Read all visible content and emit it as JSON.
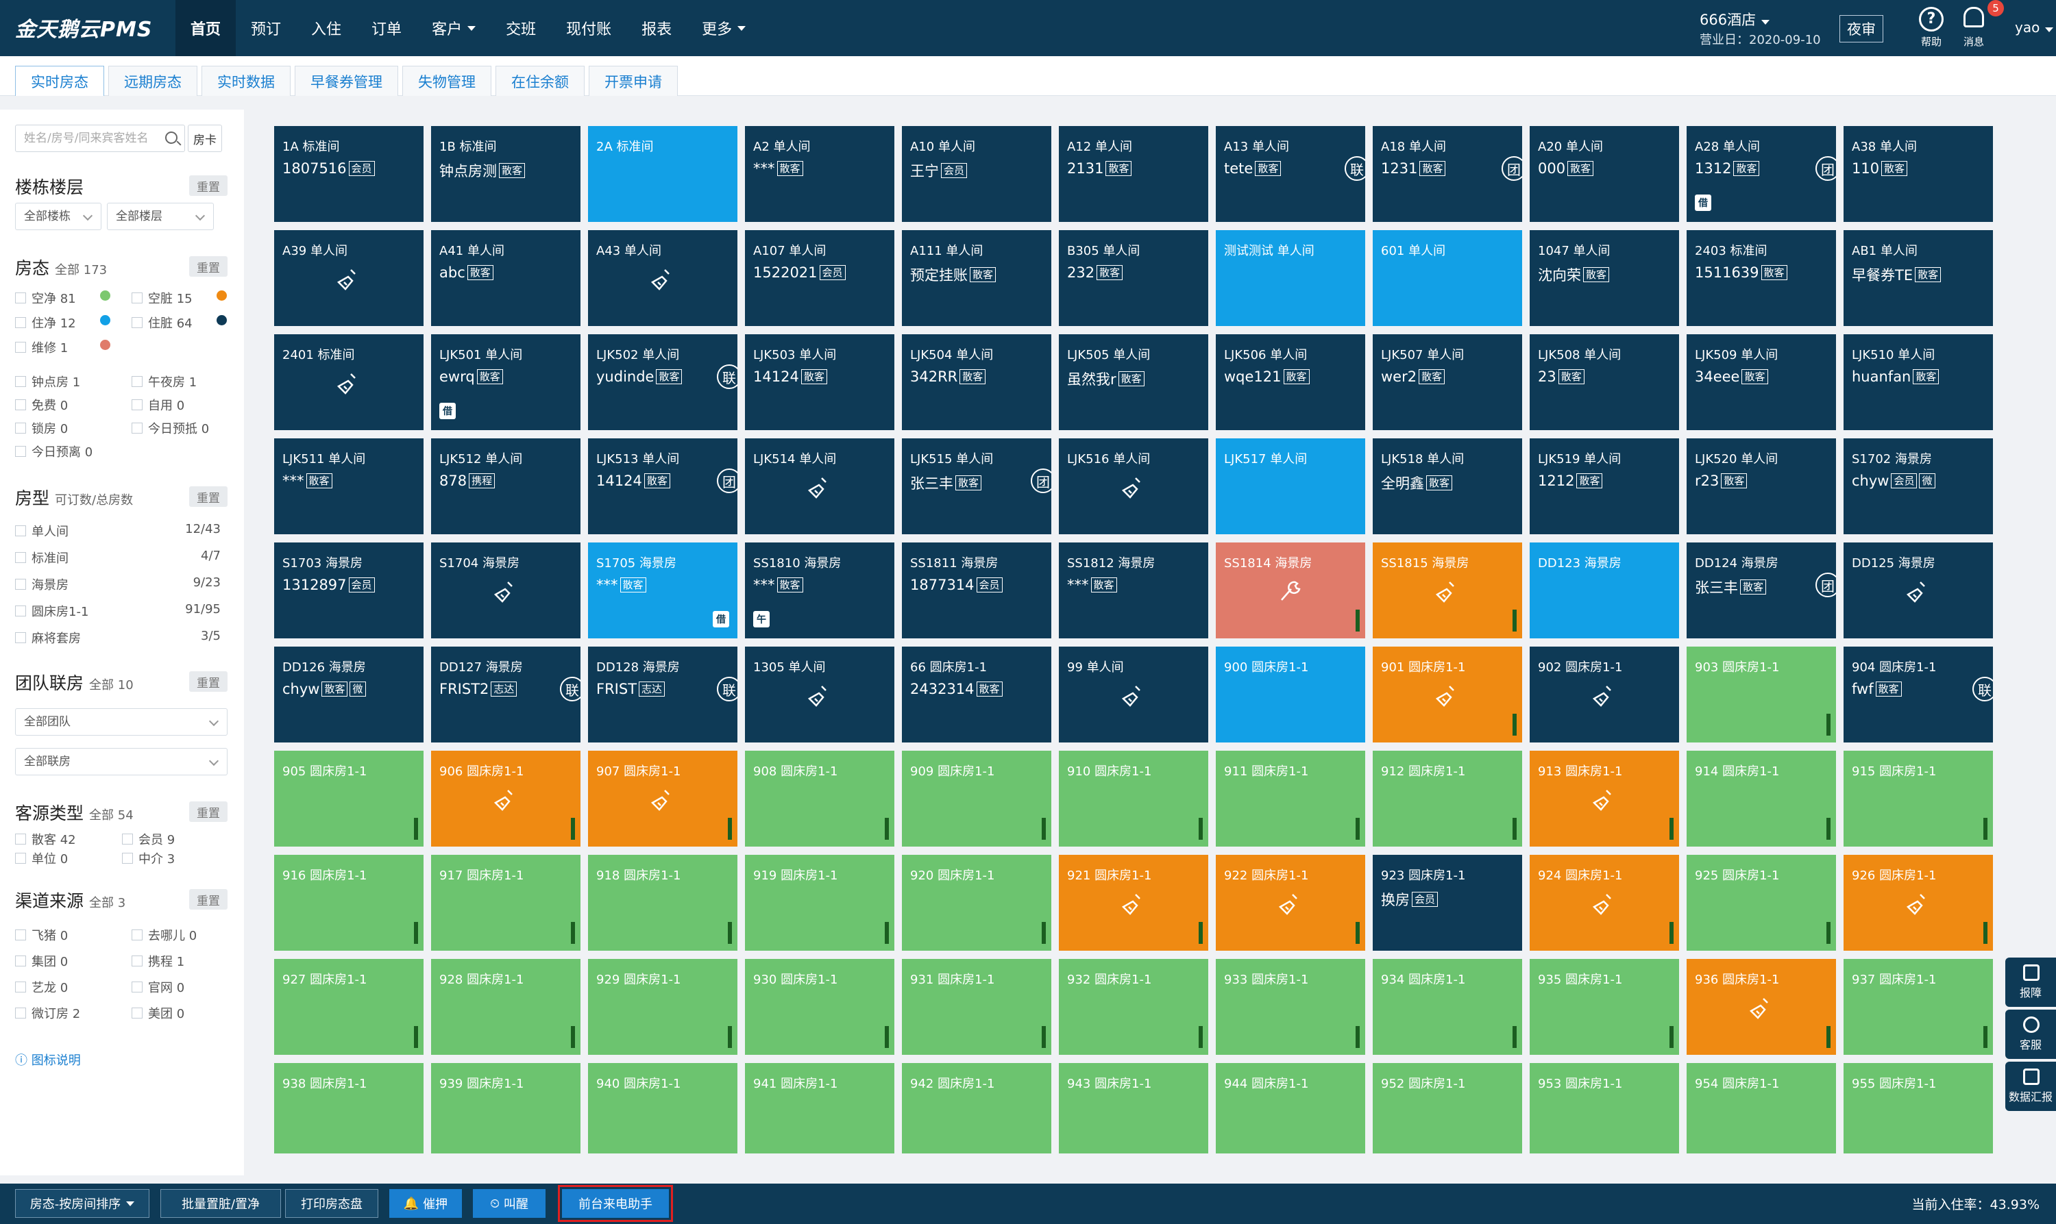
{
  "app": {
    "title": "金天鹅云PMS"
  },
  "nav": [
    {
      "label": "首页",
      "active": true
    },
    {
      "label": "预订"
    },
    {
      "label": "入住"
    },
    {
      "label": "订单"
    },
    {
      "label": "客户",
      "dropdown": true
    },
    {
      "label": "交班"
    },
    {
      "label": "现付账"
    },
    {
      "label": "报表"
    },
    {
      "label": "更多",
      "dropdown": true
    }
  ],
  "header": {
    "hotel": "666酒店",
    "business_date": "营业日：2020-09-10",
    "night_audit": "夜审",
    "help": "帮助",
    "messages": "消息",
    "message_count": "5",
    "user": "yao"
  },
  "tabs": [
    {
      "label": "实时房态",
      "active": true
    },
    {
      "label": "远期房态"
    },
    {
      "label": "实时数据"
    },
    {
      "label": "早餐券管理"
    },
    {
      "label": "失物管理"
    },
    {
      "label": "在住余额"
    },
    {
      "label": "开票申请"
    }
  ],
  "sidebar": {
    "search_placeholder": "姓名/房号/同来宾客姓名",
    "room_card": "房卡",
    "reset": "重置",
    "building": {
      "title": "楼栋楼层",
      "building_select": "全部楼栋",
      "floor_select": "全部楼层"
    },
    "status": {
      "title": "房态",
      "total": "全部 173",
      "items": [
        {
          "label": "空净 81",
          "color": "#7cc86f"
        },
        {
          "label": "空脏 15",
          "color": "#ef8a12"
        },
        {
          "label": "住净 12",
          "color": "#12a0e6"
        },
        {
          "label": "住脏 64",
          "color": "#0e3a56"
        },
        {
          "label": "维修 1",
          "color": "#e07b6a"
        }
      ],
      "extra": [
        "钟点房 1",
        "午夜房 1",
        "免费 0",
        "自用 0",
        "锁房 0",
        "今日预抵 0",
        "今日预离 0"
      ]
    },
    "room_type": {
      "title": "房型",
      "sub": "可订数/总房数",
      "items": [
        {
          "label": "单人间",
          "count": "12/43"
        },
        {
          "label": "标准间",
          "count": "4/7"
        },
        {
          "label": "海景房",
          "count": "9/23"
        },
        {
          "label": "圆床房1-1",
          "count": "91/95"
        },
        {
          "label": "麻将套房",
          "count": "3/5"
        }
      ]
    },
    "group": {
      "title": "团队联房",
      "total": "全部 10",
      "team_select": "全部团队",
      "linked_select": "全部联房"
    },
    "source": {
      "title": "客源类型",
      "total": "全部 54",
      "items": [
        "散客 42",
        "会员 9",
        "单位 0",
        "中介 3"
      ]
    },
    "channel": {
      "title": "渠道来源",
      "total": "全部 3",
      "items": [
        "飞猪 0",
        "去哪儿 0",
        "集团 0",
        "携程 1",
        "艺龙 0",
        "官网 0",
        "微订房 2",
        "美团 0"
      ]
    },
    "legend_link": "图标说明"
  },
  "colors": {
    "occupied_dirty": "#0e3a56",
    "occupied_clean": "#12a0e6",
    "vacant_clean": "#6cc46f",
    "vacant_dirty": "#ef8a12",
    "repair": "#e07b6a"
  },
  "rooms": [
    {
      "name": "1A 标准间",
      "guest": "1807516",
      "tag": "会员",
      "status": "occupied_dirty"
    },
    {
      "name": "1B 标准间",
      "guest": "钟点房测",
      "tag": "散客",
      "status": "occupied_dirty"
    },
    {
      "name": "2A 标准间",
      "guest": "",
      "tag": "",
      "status": "occupied_clean"
    },
    {
      "name": "A2 单人间",
      "guest": "***",
      "tag": "散客",
      "status": "occupied_dirty"
    },
    {
      "name": "A10 单人间",
      "guest": "王宁",
      "tag": "会员",
      "status": "occupied_dirty"
    },
    {
      "name": "A12 单人间",
      "guest": "2131",
      "tag": "散客",
      "status": "occupied_dirty"
    },
    {
      "name": "A13 单人间",
      "guest": "tete",
      "tag": "散客",
      "status": "occupied_dirty",
      "badge": "联"
    },
    {
      "name": "A18 单人间",
      "guest": "1231",
      "tag": "散客",
      "status": "occupied_dirty",
      "badge": "团"
    },
    {
      "name": "A20 单人间",
      "guest": "000",
      "tag": "散客",
      "status": "occupied_dirty"
    },
    {
      "name": "A28 单人间",
      "guest": "1312",
      "tag": "散客",
      "status": "occupied_dirty",
      "badge": "团",
      "mini": "借"
    },
    {
      "name": "A38 单人间",
      "guest": "110",
      "tag": "散客",
      "status": "occupied_dirty"
    },
    {
      "name": "A39 单人间",
      "guest": "",
      "tag": "",
      "status": "occupied_dirty",
      "broom": true
    },
    {
      "name": "A41 单人间",
      "guest": "abc",
      "tag": "散客",
      "status": "occupied_dirty"
    },
    {
      "name": "A43 单人间",
      "guest": "",
      "tag": "",
      "status": "occupied_dirty",
      "broom": true
    },
    {
      "name": "A107 单人间",
      "guest": "1522021",
      "tag": "会员",
      "status": "occupied_dirty"
    },
    {
      "name": "A111 单人间",
      "guest": "预定挂账",
      "tag": "散客",
      "status": "occupied_dirty"
    },
    {
      "name": "B305 单人间",
      "guest": "232",
      "tag": "散客",
      "status": "occupied_dirty"
    },
    {
      "name": "测试测试 单人间",
      "guest": "",
      "tag": "",
      "status": "occupied_clean"
    },
    {
      "name": "601 单人间",
      "guest": "",
      "tag": "",
      "status": "occupied_clean"
    },
    {
      "name": "1047 单人间",
      "guest": "沈向荣",
      "tag": "散客",
      "status": "occupied_dirty"
    },
    {
      "name": "2403 标准间",
      "guest": "1511639",
      "tag": "散客",
      "status": "occupied_dirty"
    },
    {
      "name": "AB1 单人间",
      "guest": "早餐券TE",
      "tag": "散客",
      "status": "occupied_dirty"
    },
    {
      "name": "2401 标准间",
      "guest": "",
      "tag": "",
      "status": "occupied_dirty",
      "broom": true
    },
    {
      "name": "LJK501 单人间",
      "guest": "ewrq",
      "tag": "散客",
      "status": "occupied_dirty",
      "mini": "借"
    },
    {
      "name": "LJK502 单人间",
      "guest": "yudinde",
      "tag": "散客",
      "status": "occupied_dirty",
      "badge": "联"
    },
    {
      "name": "LJK503 单人间",
      "guest": "14124",
      "tag": "散客",
      "status": "occupied_dirty"
    },
    {
      "name": "LJK504 单人间",
      "guest": "342RR",
      "tag": "散客",
      "status": "occupied_dirty"
    },
    {
      "name": "LJK505 单人间",
      "guest": "虽然我r",
      "tag": "散客",
      "status": "occupied_dirty"
    },
    {
      "name": "LJK506 单人间",
      "guest": "wqe121",
      "tag": "散客",
      "status": "occupied_dirty"
    },
    {
      "name": "LJK507 单人间",
      "guest": "wer2",
      "tag": "散客",
      "status": "occupied_dirty"
    },
    {
      "name": "LJK508 单人间",
      "guest": "23",
      "tag": "散客",
      "status": "occupied_dirty"
    },
    {
      "name": "LJK509 单人间",
      "guest": "34eee",
      "tag": "散客",
      "status": "occupied_dirty"
    },
    {
      "name": "LJK510 单人间",
      "guest": "huanfan",
      "tag": "散客",
      "status": "occupied_dirty"
    },
    {
      "name": "LJK511 单人间",
      "guest": "***",
      "tag": "散客",
      "status": "occupied_dirty"
    },
    {
      "name": "LJK512 单人间",
      "guest": "878",
      "tag": "携程",
      "status": "occupied_dirty"
    },
    {
      "name": "LJK513 单人间",
      "guest": "14124",
      "tag": "散客",
      "status": "occupied_dirty",
      "badge": "团"
    },
    {
      "name": "LJK514 单人间",
      "guest": "",
      "tag": "",
      "status": "occupied_dirty",
      "broom": true
    },
    {
      "name": "LJK515 单人间",
      "guest": "张三丰",
      "tag": "散客",
      "status": "occupied_dirty",
      "badge": "团"
    },
    {
      "name": "LJK516 单人间",
      "guest": "",
      "tag": "",
      "status": "occupied_dirty",
      "broom": true
    },
    {
      "name": "LJK517 单人间",
      "guest": "",
      "tag": "",
      "status": "occupied_clean"
    },
    {
      "name": "LJK518 单人间",
      "guest": "全明鑫",
      "tag": "散客",
      "status": "occupied_dirty"
    },
    {
      "name": "LJK519 单人间",
      "guest": "1212",
      "tag": "散客",
      "status": "occupied_dirty"
    },
    {
      "name": "LJK520 单人间",
      "guest": "r23",
      "tag": "散客",
      "status": "occupied_dirty"
    },
    {
      "name": "S1702 海景房",
      "guest": "chyw",
      "tag": "会员",
      "tag2": "微",
      "status": "occupied_dirty"
    },
    {
      "name": "S1703 海景房",
      "guest": "1312897",
      "tag": "会员",
      "status": "occupied_dirty"
    },
    {
      "name": "S1704 海景房",
      "guest": "",
      "tag": "",
      "status": "occupied_dirty",
      "broom": true
    },
    {
      "name": "S1705 海景房",
      "guest": "***",
      "tag": "散客",
      "status": "occupied_clean",
      "mini_right": "借"
    },
    {
      "name": "SS1810 海景房",
      "guest": "***",
      "tag": "散客",
      "status": "occupied_dirty",
      "mini": "午"
    },
    {
      "name": "SS1811 海景房",
      "guest": "1877314",
      "tag": "会员",
      "status": "occupied_dirty"
    },
    {
      "name": "SS1812 海景房",
      "guest": "***",
      "tag": "散客",
      "status": "occupied_dirty"
    },
    {
      "name": "SS1814 海景房",
      "guest": "",
      "tag": "",
      "status": "repair",
      "wrench": true,
      "ind": true
    },
    {
      "name": "SS1815 海景房",
      "guest": "",
      "tag": "",
      "status": "vacant_dirty",
      "broom": true,
      "ind": true
    },
    {
      "name": "DD123 海景房",
      "guest": "",
      "tag": "",
      "status": "occupied_clean"
    },
    {
      "name": "DD124 海景房",
      "guest": "张三丰",
      "tag": "散客",
      "status": "occupied_dirty",
      "badge": "团"
    },
    {
      "name": "DD125 海景房",
      "guest": "",
      "tag": "",
      "status": "occupied_dirty",
      "broom": true
    },
    {
      "name": "DD126 海景房",
      "guest": "chyw",
      "tag": "散客",
      "tag2": "微",
      "status": "occupied_dirty"
    },
    {
      "name": "DD127 海景房",
      "guest": "FRIST2",
      "tag": "志达",
      "status": "occupied_dirty",
      "badge": "联"
    },
    {
      "name": "DD128 海景房",
      "guest": "FRIST",
      "tag": "志达",
      "status": "occupied_dirty",
      "badge": "联"
    },
    {
      "name": "1305 单人间",
      "guest": "",
      "tag": "",
      "status": "occupied_dirty",
      "broom": true
    },
    {
      "name": "66 圆床房1-1",
      "guest": "2432314",
      "tag": "散客",
      "status": "occupied_dirty"
    },
    {
      "name": "99 单人间",
      "guest": "",
      "tag": "",
      "status": "occupied_dirty",
      "broom": true
    },
    {
      "name": "900 圆床房1-1",
      "guest": "",
      "tag": "",
      "status": "occupied_clean"
    },
    {
      "name": "901 圆床房1-1",
      "guest": "",
      "tag": "",
      "status": "vacant_dirty",
      "broom": true,
      "ind": true
    },
    {
      "name": "902 圆床房1-1",
      "guest": "",
      "tag": "",
      "status": "occupied_dirty",
      "broom": true
    },
    {
      "name": "903 圆床房1-1",
      "guest": "",
      "tag": "",
      "status": "vacant_clean",
      "ind": true
    },
    {
      "name": "904 圆床房1-1",
      "guest": "fwf",
      "tag": "散客",
      "status": "occupied_dirty",
      "badge": "联"
    },
    {
      "name": "905 圆床房1-1",
      "guest": "",
      "tag": "",
      "status": "vacant_clean",
      "ind": true
    },
    {
      "name": "906 圆床房1-1",
      "guest": "",
      "tag": "",
      "status": "vacant_dirty",
      "broom": true,
      "ind": true
    },
    {
      "name": "907 圆床房1-1",
      "guest": "",
      "tag": "",
      "status": "vacant_dirty",
      "broom": true,
      "ind": true
    },
    {
      "name": "908 圆床房1-1",
      "guest": "",
      "tag": "",
      "status": "vacant_clean",
      "ind": true
    },
    {
      "name": "909 圆床房1-1",
      "guest": "",
      "tag": "",
      "status": "vacant_clean",
      "ind": true
    },
    {
      "name": "910 圆床房1-1",
      "guest": "",
      "tag": "",
      "status": "vacant_clean",
      "ind": true
    },
    {
      "name": "911 圆床房1-1",
      "guest": "",
      "tag": "",
      "status": "vacant_clean",
      "ind": true
    },
    {
      "name": "912 圆床房1-1",
      "guest": "",
      "tag": "",
      "status": "vacant_clean",
      "ind": true
    },
    {
      "name": "913 圆床房1-1",
      "guest": "",
      "tag": "",
      "status": "vacant_dirty",
      "broom": true,
      "ind": true
    },
    {
      "name": "914 圆床房1-1",
      "guest": "",
      "tag": "",
      "status": "vacant_clean",
      "ind": true
    },
    {
      "name": "915 圆床房1-1",
      "guest": "",
      "tag": "",
      "status": "vacant_clean",
      "ind": true
    },
    {
      "name": "916 圆床房1-1",
      "guest": "",
      "tag": "",
      "status": "vacant_clean",
      "ind": true
    },
    {
      "name": "917 圆床房1-1",
      "guest": "",
      "tag": "",
      "status": "vacant_clean",
      "ind": true
    },
    {
      "name": "918 圆床房1-1",
      "guest": "",
      "tag": "",
      "status": "vacant_clean",
      "ind": true
    },
    {
      "name": "919 圆床房1-1",
      "guest": "",
      "tag": "",
      "status": "vacant_clean",
      "ind": true
    },
    {
      "name": "920 圆床房1-1",
      "guest": "",
      "tag": "",
      "status": "vacant_clean",
      "ind": true
    },
    {
      "name": "921 圆床房1-1",
      "guest": "",
      "tag": "",
      "status": "vacant_dirty",
      "broom": true,
      "ind": true
    },
    {
      "name": "922 圆床房1-1",
      "guest": "",
      "tag": "",
      "status": "vacant_dirty",
      "broom": true,
      "ind": true
    },
    {
      "name": "923 圆床房1-1",
      "guest": "换房",
      "tag": "会员",
      "status": "occupied_dirty"
    },
    {
      "name": "924 圆床房1-1",
      "guest": "",
      "tag": "",
      "status": "vacant_dirty",
      "broom": true,
      "ind": true
    },
    {
      "name": "925 圆床房1-1",
      "guest": "",
      "tag": "",
      "status": "vacant_clean",
      "ind": true
    },
    {
      "name": "926 圆床房1-1",
      "guest": "",
      "tag": "",
      "status": "vacant_dirty",
      "broom": true,
      "ind": true
    },
    {
      "name": "927 圆床房1-1",
      "guest": "",
      "tag": "",
      "status": "vacant_clean",
      "ind": true
    },
    {
      "name": "928 圆床房1-1",
      "guest": "",
      "tag": "",
      "status": "vacant_clean",
      "ind": true
    },
    {
      "name": "929 圆床房1-1",
      "guest": "",
      "tag": "",
      "status": "vacant_clean",
      "ind": true
    },
    {
      "name": "930 圆床房1-1",
      "guest": "",
      "tag": "",
      "status": "vacant_clean",
      "ind": true
    },
    {
      "name": "931 圆床房1-1",
      "guest": "",
      "tag": "",
      "status": "vacant_clean",
      "ind": true
    },
    {
      "name": "932 圆床房1-1",
      "guest": "",
      "tag": "",
      "status": "vacant_clean",
      "ind": true
    },
    {
      "name": "933 圆床房1-1",
      "guest": "",
      "tag": "",
      "status": "vacant_clean",
      "ind": true
    },
    {
      "name": "934 圆床房1-1",
      "guest": "",
      "tag": "",
      "status": "vacant_clean",
      "ind": true
    },
    {
      "name": "935 圆床房1-1",
      "guest": "",
      "tag": "",
      "status": "vacant_clean",
      "ind": true
    },
    {
      "name": "936 圆床房1-1",
      "guest": "",
      "tag": "",
      "status": "vacant_dirty",
      "broom": true,
      "ind": true
    },
    {
      "name": "937 圆床房1-1",
      "guest": "",
      "tag": "",
      "status": "vacant_clean",
      "ind": true
    },
    {
      "name": "938 圆床房1-1",
      "guest": "",
      "tag": "",
      "status": "vacant_clean"
    },
    {
      "name": "939 圆床房1-1",
      "guest": "",
      "tag": "",
      "status": "vacant_clean"
    },
    {
      "name": "940 圆床房1-1",
      "guest": "",
      "tag": "",
      "status": "vacant_clean"
    },
    {
      "name": "941 圆床房1-1",
      "guest": "",
      "tag": "",
      "status": "vacant_clean"
    },
    {
      "name": "942 圆床房1-1",
      "guest": "",
      "tag": "",
      "status": "vacant_clean"
    },
    {
      "name": "943 圆床房1-1",
      "guest": "",
      "tag": "",
      "status": "vacant_clean"
    },
    {
      "name": "944 圆床房1-1",
      "guest": "",
      "tag": "",
      "status": "vacant_clean"
    },
    {
      "name": "952 圆床房1-1",
      "guest": "",
      "tag": "",
      "status": "vacant_clean"
    },
    {
      "name": "953 圆床房1-1",
      "guest": "",
      "tag": "",
      "status": "vacant_clean"
    },
    {
      "name": "954 圆床房1-1",
      "guest": "",
      "tag": "",
      "status": "vacant_clean"
    },
    {
      "name": "955 圆床房1-1",
      "guest": "",
      "tag": "",
      "status": "vacant_clean"
    }
  ],
  "bottom": {
    "sort_select": "房态-按房间排序",
    "batch": "批量置脏/置净",
    "print": "打印房态盘",
    "remind": "催押",
    "wake": "叫醒",
    "assistant": "前台来电助手",
    "occupancy": "当前入住率：43.93%"
  },
  "float": [
    "报障",
    "客服",
    "数据汇报"
  ]
}
